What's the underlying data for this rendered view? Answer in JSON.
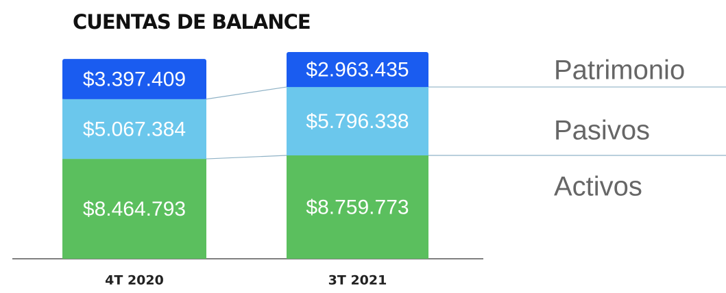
{
  "chart_data": {
    "type": "stacked_bar",
    "title": "CUENTAS DE BALANCE",
    "categories": [
      "4T 2020",
      "3T 2021"
    ],
    "series": [
      {
        "name": "Activos",
        "color": "#5bbf5e",
        "values": [
          8464793,
          8759773
        ],
        "value_labels": [
          "$8.464.793",
          "$8.759.773"
        ]
      },
      {
        "name": "Pasivos",
        "color": "#6bc7ec",
        "values": [
          5067384,
          5796338
        ],
        "value_labels": [
          "$5.067.384",
          "$5.796.338"
        ]
      },
      {
        "name": "Patrimonio",
        "color": "#1a5cf0",
        "values": [
          3397409,
          2963435
        ],
        "value_labels": [
          "$3.397.409",
          "$2.963.435"
        ]
      }
    ]
  }
}
